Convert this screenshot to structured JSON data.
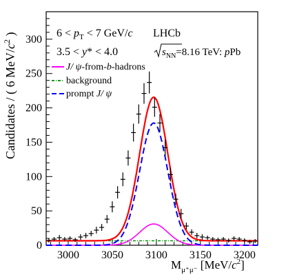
{
  "chart_data": {
    "type": "scatter",
    "xlabel": "M_{μ⁺μ⁻} [MeV/c²]",
    "ylabel": "Candidates / ( 6 MeV/c² )",
    "xlim": [
      2975,
      3215
    ],
    "ylim": [
      0,
      340
    ],
    "x_ticks": [
      3000,
      3050,
      3100,
      3150,
      3200
    ],
    "y_ticks": [
      0,
      50,
      100,
      150,
      200,
      250,
      300
    ],
    "annotations": {
      "pt": "6 < p_T < 7 GeV/c",
      "ystar": "3.5 < y* < 4.0",
      "experiment": "LHCb",
      "energy": "√s_NN=8.16 TeV: pPb"
    },
    "legend": {
      "position": "top-left",
      "entries": [
        {
          "label": "J/ψ-from-b-hadrons",
          "color": "#ff00ff",
          "style": "solid"
        },
        {
          "label": "background",
          "color": "#009900",
          "style": "dash-dot"
        },
        {
          "label": "prompt J/ψ",
          "color": "#0000ff",
          "style": "dashed"
        }
      ]
    },
    "data_points": {
      "x": [
        2978,
        2984,
        2990,
        2996,
        3002,
        3008,
        3014,
        3020,
        3026,
        3032,
        3038,
        3044,
        3050,
        3056,
        3062,
        3068,
        3074,
        3080,
        3086,
        3092,
        3098,
        3104,
        3110,
        3116,
        3122,
        3128,
        3134,
        3140,
        3146,
        3152,
        3158,
        3164,
        3170,
        3176,
        3182,
        3188,
        3194,
        3200,
        3206,
        3212
      ],
      "y": [
        7,
        9,
        11,
        9,
        10,
        8,
        12,
        14,
        17,
        22,
        26,
        38,
        56,
        77,
        96,
        127,
        164,
        191,
        221,
        237,
        201,
        178,
        142,
        103,
        67,
        46,
        28,
        19,
        14,
        12,
        11,
        9,
        8,
        9,
        7,
        10,
        9,
        7,
        5,
        6
      ],
      "yerr": [
        3,
        3,
        4,
        3,
        3,
        3,
        4,
        4,
        4,
        5,
        5,
        6,
        8,
        9,
        10,
        11,
        13,
        14,
        15,
        16,
        14,
        13,
        12,
        10,
        8,
        7,
        5,
        4,
        4,
        4,
        3,
        3,
        3,
        3,
        3,
        3,
        3,
        3,
        3,
        3
      ]
    },
    "series": [
      {
        "name": "total fit",
        "color": "#ff0000",
        "style": "solid"
      },
      {
        "name": "prompt J/ψ",
        "color": "#0000ff",
        "style": "dashed"
      },
      {
        "name": "J/ψ-from-b-hadrons",
        "color": "#ff00ff",
        "style": "solid"
      },
      {
        "name": "background",
        "color": "#009900",
        "style": "dash-dot"
      }
    ],
    "model": {
      "mean": 3097,
      "sigma_prompt": 16,
      "prompt_peak": 178,
      "sigma_b": 16,
      "b_peak": 31,
      "background": 6.5
    }
  }
}
